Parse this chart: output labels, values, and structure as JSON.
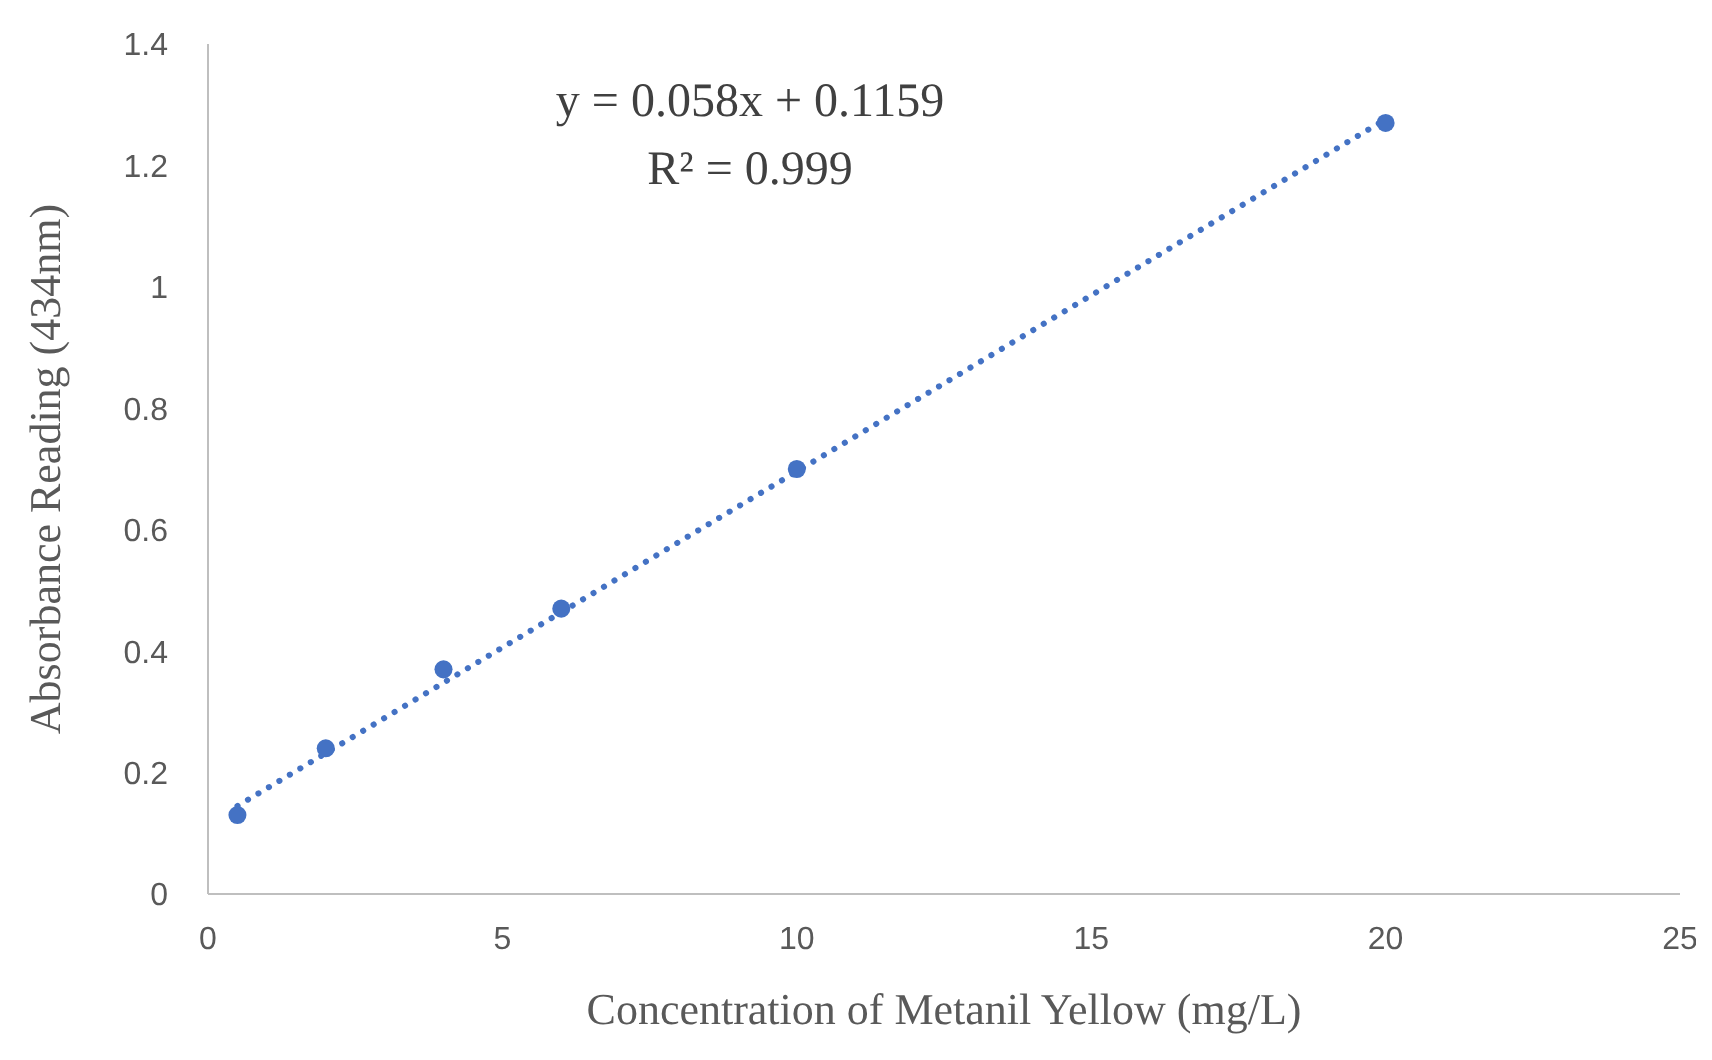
{
  "chart_data": {
    "type": "scatter",
    "xlabel": "Concentration of Metanil Yellow (mg/L)",
    "ylabel": "Absorbance Reading (434nm)",
    "x": [
      0.5,
      2,
      4,
      6,
      10,
      20
    ],
    "series": [
      {
        "type": "scatter",
        "color": "#4472c4",
        "values": [
          0.13,
          0.24,
          0.37,
          0.47,
          0.7,
          1.27
        ],
        "marker": "circle"
      },
      {
        "type": "line",
        "color": "#4472c4",
        "x": [
          0.5,
          20
        ],
        "values": [
          0.145,
          1.276
        ],
        "marker": "none",
        "line_style": "dotted"
      }
    ],
    "xlim": [
      0,
      25
    ],
    "xticks": [
      0,
      5,
      10,
      15,
      20,
      25
    ],
    "ylim": [
      0,
      1.4
    ],
    "yticks": [
      0,
      0.2,
      0.4,
      0.6,
      0.8,
      1,
      1.2,
      1.4
    ],
    "annotations": [
      "y = 0.058x + 0.1159",
      "R² = 0.999"
    ]
  }
}
